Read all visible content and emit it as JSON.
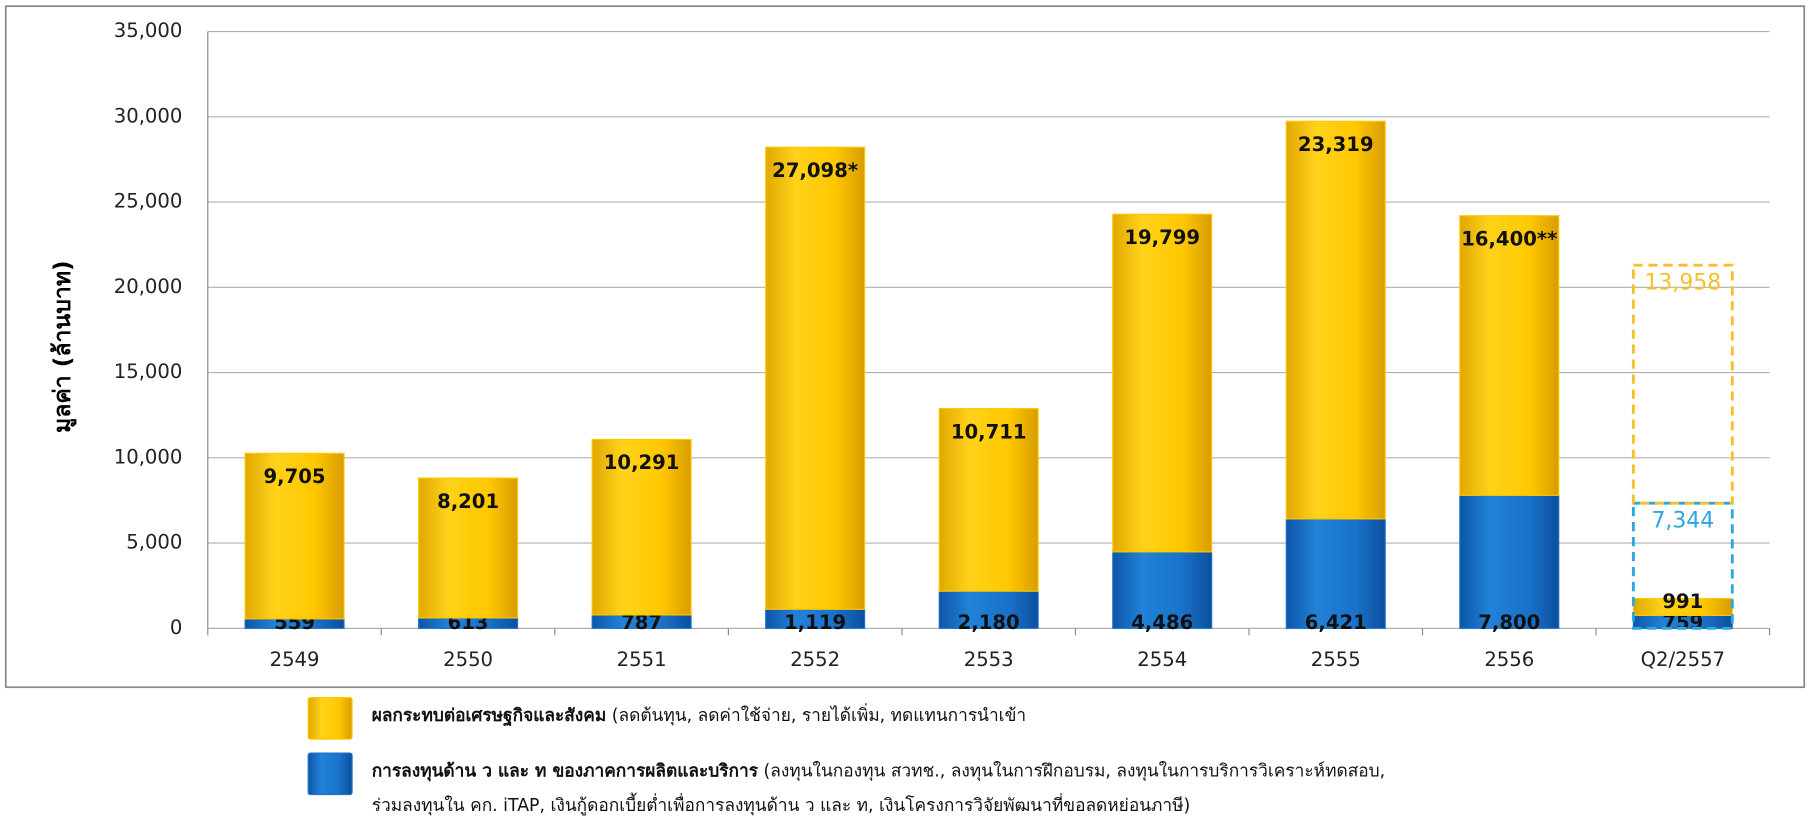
{
  "chart_data": {
    "type": "stacked_bar",
    "y_axis_label": "มูลค่า (ล้านบาท)",
    "categories": [
      "2549",
      "2550",
      "2551",
      "2552",
      "2553",
      "2554",
      "2555",
      "2556",
      "Q2/2557"
    ],
    "series": [
      {
        "name": "การลงทุนด้าน ว และ ท ของภาคการผลิตและบริการ",
        "description_lines": [
          "(ลงทุนในกองทุน สวทช., ลงทุนในการฝึกอบรม, ลงทุนในการบริการวิเคราะห์ทดสอบ,",
          "ร่วมลงทุนใน คก. iTAP, เงินกู้ดอกเบี้ยต่ำเพื่อการลงทุนด้าน ว และ ท, เงินโครงการวิจัยพัฒนาที่ขอลดหย่อนภาษี)"
        ],
        "color": "#1a72c9",
        "values": [
          559,
          613,
          787,
          1119,
          2180,
          4486,
          6421,
          7800,
          759
        ],
        "value_labels": [
          "559",
          "613",
          "787",
          "1,119",
          "2,180",
          "4,486",
          "6,421",
          "7,800",
          "759"
        ]
      },
      {
        "name": "ผลกระทบต่อเศรษฐกิจและสังคม",
        "description_lines": [
          "(ลดต้นทุน, ลดค่าใช้จ่าย, รายได้เพิ่ม, ทดแทนการนำเข้า"
        ],
        "color": "#ffc800",
        "values": [
          9705,
          8201,
          10291,
          27098,
          10711,
          19799,
          23319,
          16400,
          991
        ],
        "value_labels": [
          "9,705",
          "8,201",
          "10,291",
          "27,098*",
          "10,711",
          "19,799",
          "23,319",
          "16,400**",
          "991"
        ]
      }
    ],
    "projection": {
      "category_index": 8,
      "series": [
        {
          "color": "#2aa8e0",
          "values": [
            7344
          ],
          "value_labels": [
            "7,344"
          ]
        },
        {
          "color": "#f5c02a",
          "values": [
            13958
          ],
          "value_labels": [
            "13,958"
          ]
        }
      ]
    },
    "ylim": [
      0,
      35000
    ],
    "yticks": [
      0,
      {
        "value": 5000,
        "label": "5,000"
      },
      {
        "value": 10000,
        "label": "10,000"
      },
      {
        "value": 15000,
        "label": "15,000"
      },
      {
        "value": 20000,
        "label": "20,000"
      },
      {
        "value": 25000,
        "label": "25,000"
      },
      {
        "value": 30000,
        "label": "30,000"
      },
      {
        "value": 35000,
        "label": "35,000"
      }
    ],
    "grid": true
  }
}
